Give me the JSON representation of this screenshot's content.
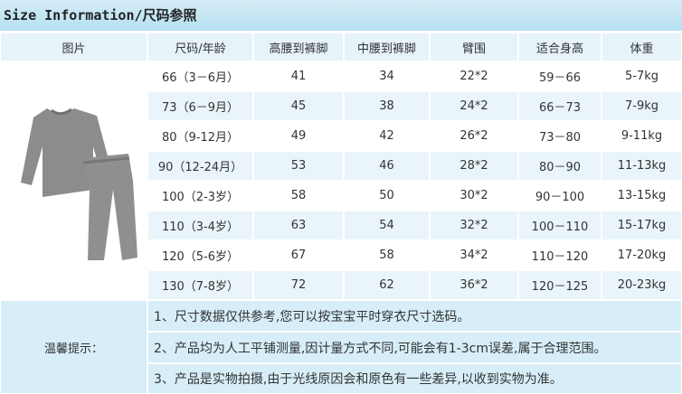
{
  "header": {
    "title": "Size Information/尺码参照"
  },
  "table": {
    "header": [
      "图片",
      "尺码/年龄",
      "高腰到裤脚",
      "中腰到裤脚",
      "臂围",
      "适合身高",
      "体重"
    ],
    "rows": [
      [
        "66（3－6月）",
        "41",
        "34",
        "22*2",
        "59－66",
        "5-7kg"
      ],
      [
        "73（6－9月）",
        "45",
        "38",
        "24*2",
        "66－73",
        "7-9kg"
      ],
      [
        "80（9-12月）",
        "49",
        "42",
        "26*2",
        "73－80",
        "9-11kg"
      ],
      [
        "90（12-24月）",
        "53",
        "46",
        "28*2",
        "80－90",
        "11-13kg"
      ],
      [
        "100（2-3岁）",
        "58",
        "50",
        "30*2",
        "90－100",
        "13-15kg"
      ],
      [
        "110（3-4岁）",
        "63",
        "54",
        "32*2",
        "100－110",
        "15-17kg"
      ],
      [
        "120（5-6岁）",
        "67",
        "58",
        "34*2",
        "110－120",
        "17-20kg"
      ],
      [
        "130（7-8岁）",
        "72",
        "62",
        "36*2",
        "120－125",
        "20-23kg"
      ]
    ]
  },
  "notes": {
    "label": "温馨提示：",
    "items": [
      "1、尺寸数据仅供参考,您可以按宝宝平时穿衣尺寸选码。",
      "2、产品均为人工平铺测量,因计量方式不同,可能会有1-3cm误差,属于合理范围。",
      "3、产品是实物拍摄,由于光线原因会和原色有一些差异,以收到实物为准。"
    ]
  }
}
